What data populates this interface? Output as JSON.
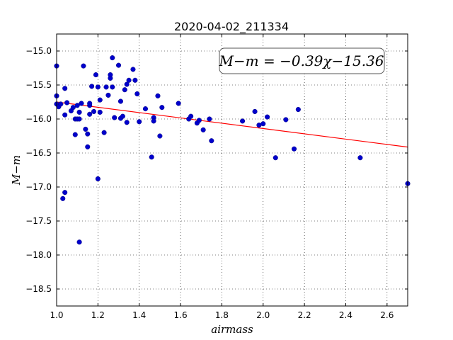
{
  "chart_data": {
    "type": "scatter",
    "title": "2020-04-02_211334",
    "xlabel": "airmass",
    "ylabel": "M−m",
    "xlim": [
      1.0,
      2.7
    ],
    "ylim": [
      -18.75,
      -14.75
    ],
    "y_inverted": true,
    "grid": true,
    "x_ticks": [
      "1.0",
      "1.2",
      "1.4",
      "1.6",
      "1.8",
      "2.0",
      "2.2",
      "2.4",
      "2.6"
    ],
    "y_ticks": [
      "−15.0",
      "−15.5",
      "−16.0",
      "−16.5",
      "−17.0",
      "−17.5",
      "−18.0",
      "−18.5"
    ],
    "annotation": "M−m = −0.39χ−15.36",
    "fit": {
      "slope": -0.39,
      "intercept": -15.36,
      "color": "#ff0000"
    },
    "point_color": "#0000cc",
    "points": [
      [
        1.0,
        -15.22
      ],
      [
        1.0,
        -15.66
      ],
      [
        1.0,
        -15.78
      ],
      [
        1.01,
        -15.82
      ],
      [
        1.02,
        -15.78
      ],
      [
        1.03,
        -17.17
      ],
      [
        1.04,
        -17.08
      ],
      [
        1.04,
        -15.94
      ],
      [
        1.04,
        -15.55
      ],
      [
        1.05,
        -15.76
      ],
      [
        1.07,
        -15.88
      ],
      [
        1.08,
        -15.83
      ],
      [
        1.09,
        -16.23
      ],
      [
        1.09,
        -16.0
      ],
      [
        1.1,
        -16.0
      ],
      [
        1.1,
        -15.8
      ],
      [
        1.11,
        -16.0
      ],
      [
        1.11,
        -17.81
      ],
      [
        1.11,
        -15.9
      ],
      [
        1.12,
        -15.77
      ],
      [
        1.13,
        -15.22
      ],
      [
        1.14,
        -16.15
      ],
      [
        1.15,
        -16.22
      ],
      [
        1.15,
        -16.41
      ],
      [
        1.16,
        -15.8
      ],
      [
        1.16,
        -15.77
      ],
      [
        1.16,
        -15.93
      ],
      [
        1.17,
        -15.52
      ],
      [
        1.18,
        -15.89
      ],
      [
        1.19,
        -15.35
      ],
      [
        1.2,
        -16.88
      ],
      [
        1.2,
        -15.53
      ],
      [
        1.21,
        -15.9
      ],
      [
        1.21,
        -15.72
      ],
      [
        1.23,
        -16.2
      ],
      [
        1.24,
        -15.53
      ],
      [
        1.25,
        -15.65
      ],
      [
        1.26,
        -15.4
      ],
      [
        1.26,
        -15.35
      ],
      [
        1.27,
        -15.1
      ],
      [
        1.27,
        -15.53
      ],
      [
        1.28,
        -15.98
      ],
      [
        1.3,
        -15.21
      ],
      [
        1.31,
        -15.74
      ],
      [
        1.31,
        -15.99
      ],
      [
        1.32,
        -15.96
      ],
      [
        1.33,
        -15.57
      ],
      [
        1.34,
        -15.49
      ],
      [
        1.34,
        -16.05
      ],
      [
        1.35,
        -15.43
      ],
      [
        1.37,
        -15.27
      ],
      [
        1.38,
        -15.43
      ],
      [
        1.39,
        -15.63
      ],
      [
        1.4,
        -16.04
      ],
      [
        1.43,
        -15.85
      ],
      [
        1.46,
        -16.56
      ],
      [
        1.47,
        -15.98
      ],
      [
        1.47,
        -16.03
      ],
      [
        1.49,
        -15.66
      ],
      [
        1.5,
        -16.25
      ],
      [
        1.51,
        -15.83
      ],
      [
        1.59,
        -15.77
      ],
      [
        1.64,
        -16.0
      ],
      [
        1.65,
        -15.96
      ],
      [
        1.68,
        -16.06
      ],
      [
        1.69,
        -16.02
      ],
      [
        1.71,
        -16.16
      ],
      [
        1.74,
        -16.0
      ],
      [
        1.75,
        -16.32
      ],
      [
        1.9,
        -16.03
      ],
      [
        1.96,
        -15.89
      ],
      [
        1.98,
        -16.09
      ],
      [
        2.0,
        -16.07
      ],
      [
        2.02,
        -15.97
      ],
      [
        2.06,
        -16.57
      ],
      [
        2.11,
        -16.01
      ],
      [
        2.15,
        -16.44
      ],
      [
        2.17,
        -15.86
      ],
      [
        2.47,
        -16.57
      ],
      [
        2.7,
        -16.95
      ]
    ]
  }
}
